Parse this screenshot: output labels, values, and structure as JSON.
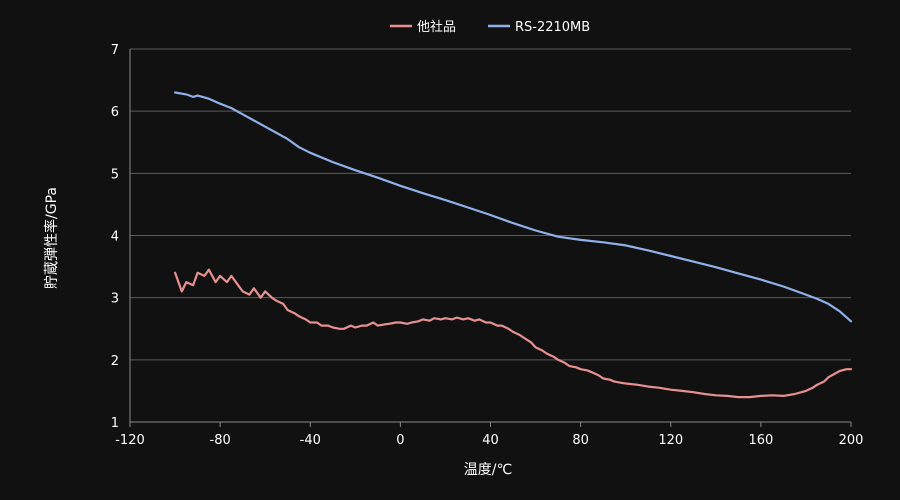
{
  "chart_data": {
    "type": "line",
    "xlabel": "温度/℃",
    "ylabel": "貯蔵弾性率/GPa",
    "xlim": [
      -120,
      200
    ],
    "ylim": [
      1,
      7
    ],
    "x_ticks": [
      "-120",
      "-80",
      "-40",
      "0",
      "40",
      "80",
      "120",
      "160",
      "200"
    ],
    "y_ticks": [
      "1",
      "2",
      "3",
      "4",
      "5",
      "6",
      "7"
    ],
    "grid": "horizontal",
    "legend_position": "top",
    "series": [
      {
        "name": "他社品",
        "color": "#e89090",
        "x": [
          -100,
          -97,
          -95,
          -92,
          -90,
          -87,
          -85,
          -82,
          -80,
          -77,
          -75,
          -72,
          -70,
          -67,
          -65,
          -62,
          -60,
          -57,
          -55,
          -52,
          -50,
          -47,
          -45,
          -42,
          -40,
          -37,
          -35,
          -32,
          -30,
          -27,
          -25,
          -22,
          -20,
          -17,
          -15,
          -12,
          -10,
          -7,
          -5,
          -2,
          0,
          3,
          5,
          8,
          10,
          13,
          15,
          18,
          20,
          23,
          25,
          28,
          30,
          33,
          35,
          38,
          40,
          43,
          45,
          48,
          50,
          53,
          55,
          58,
          60,
          63,
          65,
          68,
          70,
          73,
          75,
          78,
          80,
          83,
          85,
          88,
          90,
          93,
          95,
          98,
          100,
          105,
          110,
          115,
          120,
          125,
          130,
          135,
          140,
          145,
          150,
          155,
          160,
          165,
          170,
          175,
          180,
          183,
          185,
          188,
          190,
          193,
          195,
          198,
          200
        ],
        "y": [
          3.4,
          3.1,
          3.25,
          3.2,
          3.4,
          3.35,
          3.45,
          3.25,
          3.35,
          3.25,
          3.35,
          3.2,
          3.1,
          3.05,
          3.15,
          3.0,
          3.1,
          3.0,
          2.95,
          2.9,
          2.8,
          2.75,
          2.7,
          2.65,
          2.6,
          2.6,
          2.55,
          2.55,
          2.52,
          2.5,
          2.5,
          2.55,
          2.52,
          2.55,
          2.55,
          2.6,
          2.55,
          2.57,
          2.58,
          2.6,
          2.6,
          2.58,
          2.6,
          2.62,
          2.65,
          2.63,
          2.67,
          2.65,
          2.67,
          2.65,
          2.68,
          2.65,
          2.67,
          2.63,
          2.65,
          2.6,
          2.6,
          2.55,
          2.55,
          2.5,
          2.45,
          2.4,
          2.35,
          2.28,
          2.2,
          2.15,
          2.1,
          2.05,
          2.0,
          1.95,
          1.9,
          1.88,
          1.85,
          1.83,
          1.8,
          1.75,
          1.7,
          1.68,
          1.65,
          1.63,
          1.62,
          1.6,
          1.57,
          1.55,
          1.52,
          1.5,
          1.48,
          1.45,
          1.43,
          1.42,
          1.4,
          1.4,
          1.42,
          1.43,
          1.42,
          1.45,
          1.5,
          1.55,
          1.6,
          1.65,
          1.72,
          1.78,
          1.82,
          1.85,
          1.85
        ]
      },
      {
        "name": "RS-2210MB",
        "color": "#8fb0e8",
        "x": [
          -100,
          -95,
          -92,
          -90,
          -85,
          -80,
          -75,
          -70,
          -65,
          -60,
          -55,
          -50,
          -45,
          -40,
          -30,
          -20,
          -10,
          0,
          10,
          20,
          30,
          40,
          50,
          60,
          70,
          80,
          90,
          100,
          110,
          120,
          130,
          140,
          150,
          160,
          170,
          180,
          185,
          190,
          195,
          200
        ],
        "y": [
          6.3,
          6.27,
          6.23,
          6.25,
          6.2,
          6.12,
          6.05,
          5.95,
          5.85,
          5.75,
          5.65,
          5.55,
          5.42,
          5.33,
          5.18,
          5.05,
          4.93,
          4.8,
          4.68,
          4.57,
          4.45,
          4.33,
          4.2,
          4.08,
          3.98,
          3.93,
          3.89,
          3.84,
          3.76,
          3.67,
          3.58,
          3.49,
          3.39,
          3.29,
          3.18,
          3.05,
          2.98,
          2.9,
          2.78,
          2.62
        ]
      }
    ]
  }
}
